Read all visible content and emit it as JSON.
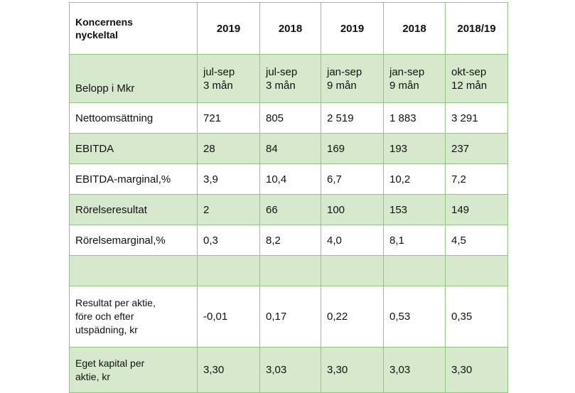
{
  "table": {
    "corner_line1": "Koncernens",
    "corner_line2": "nyckeltal",
    "years": [
      "2019",
      "2018",
      "2019",
      "2018",
      "2018/19"
    ],
    "period_row": {
      "label": "Belopp i Mkr",
      "cells": [
        [
          "jul-sep",
          "3 mån"
        ],
        [
          "jul-sep",
          "3 mån"
        ],
        [
          "jan-sep",
          "9 mån"
        ],
        [
          "jan-sep",
          "9 mån"
        ],
        [
          "okt-sep",
          "12 mån"
        ]
      ]
    },
    "rows": [
      {
        "label": "Nettoomsättning",
        "values": [
          "721",
          "805",
          "2 519",
          "1 883",
          "3 291"
        ]
      },
      {
        "label": "EBITDA",
        "values": [
          "28",
          "84",
          "169",
          "193",
          "237"
        ]
      },
      {
        "label": "EBITDA-marginal,%",
        "values": [
          "3,9",
          "10,4",
          "6,7",
          "10,2",
          "7,2"
        ]
      },
      {
        "label": "Rörelseresultat",
        "values": [
          "2",
          "66",
          "100",
          "153",
          "149"
        ]
      },
      {
        "label": "Rörelsemarginal,%",
        "values": [
          "0,3",
          "8,2",
          "4,0",
          "8,1",
          "4,5"
        ]
      }
    ],
    "eps_row": {
      "label_lines": [
        "Resultat per aktie,",
        "före och efter",
        "utspädning, kr"
      ],
      "values": [
        "-0,01",
        "0,17",
        "0,22",
        "0,53",
        "0,35"
      ]
    },
    "equity_row": {
      "label_lines": [
        "Eget kapital per",
        "aktie, kr"
      ],
      "values": [
        "3,30",
        "3,03",
        "3,30",
        "3,03",
        "3,30"
      ]
    },
    "colors": {
      "border": "#8fc77e",
      "shade": "#d7e9cc"
    }
  }
}
